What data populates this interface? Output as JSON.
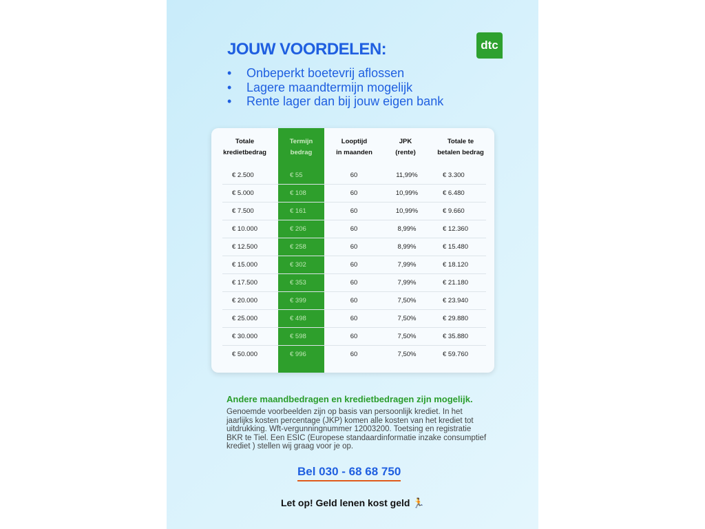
{
  "title": "JOUW VOORDELEN:",
  "logo": "dtc",
  "benefits": [
    "Onbeperkt boetevrij aflossen",
    "Lagere maandtermijn mogelijk",
    "Rente lager dan bij jouw eigen bank"
  ],
  "table": {
    "headers": [
      [
        "Totale",
        "kredietbedrag"
      ],
      [
        "Termijn",
        "bedrag"
      ],
      [
        "Looptijd",
        "in maanden"
      ],
      [
        "JPK",
        "(rente)"
      ],
      [
        "Totale te",
        "betalen bedrag"
      ]
    ],
    "rows": [
      [
        "€ 2.500",
        "€ 55",
        "60",
        "11,99%",
        "€ 3.300"
      ],
      [
        "€ 5.000",
        "€ 108",
        "60",
        "10,99%",
        "€ 6.480"
      ],
      [
        "€ 7.500",
        "€ 161",
        "60",
        "10,99%",
        "€ 9.660"
      ],
      [
        "€ 10.000",
        "€ 206",
        "60",
        "8,99%",
        "€ 12.360"
      ],
      [
        "€ 12.500",
        "€ 258",
        "60",
        "8,99%",
        "€ 15.480"
      ],
      [
        "€ 15.000",
        "€ 302",
        "60",
        "7,99%",
        "€ 18.120"
      ],
      [
        "€ 17.500",
        "€ 353",
        "60",
        "7,99%",
        "€ 21.180"
      ],
      [
        "€ 20.000",
        "€ 399",
        "60",
        "7,50%",
        "€ 23.940"
      ],
      [
        "€ 25.000",
        "€ 498",
        "60",
        "7,50%",
        "€ 29.880"
      ],
      [
        "€ 30.000",
        "€ 598",
        "60",
        "7,50%",
        "€ 35.880"
      ],
      [
        "€ 50.000",
        "€ 996",
        "60",
        "7,50%",
        "€ 59.760"
      ]
    ]
  },
  "note_heading": "Andere maandbedragen en kredietbedragen zijn mogelijk.",
  "note_text": "Genoemde voorbeelden zijn op basis van persoonlijk krediet. In het jaarlijks kosten percentage (JKP) komen alle kosten van het krediet tot uitdrukking. Wft-vergunningnummer 12003200. Toetsing en registratie BKR te Tiel. Een ESIC (Europese standaardinformatie inzake consumptief krediet ) stellen wij graag voor je op.",
  "phone": "Bel 030 - 68 68 750",
  "warning": "Let op! Geld lenen kost geld",
  "colors": {
    "blue": "#1f5fe0",
    "green": "#2e9f2c",
    "underline": "#e05a1a"
  }
}
